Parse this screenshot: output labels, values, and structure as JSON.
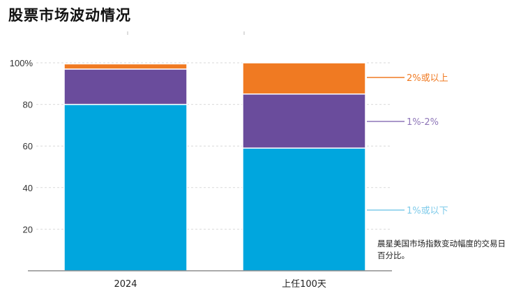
{
  "title": "股票市场波动情况",
  "note": "晨星美国市场指数变动幅度的交易日百分比。",
  "chart_data": {
    "type": "bar",
    "stacked": true,
    "categories": [
      "2024",
      "上任100天"
    ],
    "ylim": [
      0,
      100
    ],
    "yticks": [
      20,
      40,
      60,
      80,
      100
    ],
    "ytick_labels": [
      "20",
      "40",
      "60",
      "80",
      "100%"
    ],
    "grid": true,
    "series": [
      {
        "name": "1%或以下",
        "values": [
          80,
          59
        ],
        "color": "#00A6DE"
      },
      {
        "name": "1%-2%",
        "values": [
          17,
          26
        ],
        "color": "#6A4C9C"
      },
      {
        "name": "2%或以上",
        "values": [
          2.5,
          15
        ],
        "color": "#F07A22"
      }
    ],
    "segment_label_colors": [
      "#7FCBEA",
      "#8E76B8",
      "#F07A22"
    ]
  }
}
